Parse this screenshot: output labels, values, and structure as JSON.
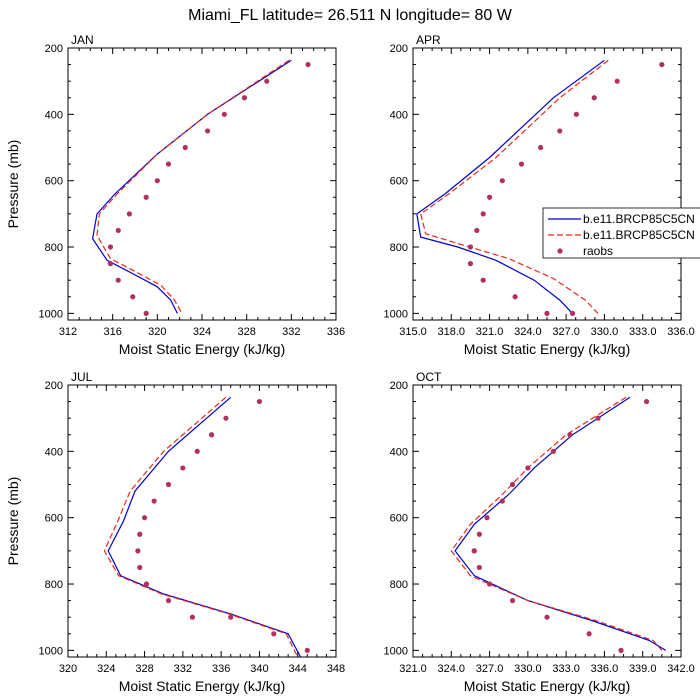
{
  "figure_title": "Miami_FL  latitude= 26.511 N longitude= 80 W",
  "legend": {
    "entries": [
      {
        "label": "b.e11.BRCP85C5CN",
        "color": "#0000cc",
        "style": "solid"
      },
      {
        "label": "b.e11.BRCP85C5CN",
        "color": "#e8281c",
        "style": "dashed"
      },
      {
        "label": "raobs",
        "color": "#b03060",
        "style": "marker"
      }
    ]
  },
  "chart_data": [
    {
      "type": "line",
      "panel": "JAN",
      "title": "JAN",
      "xlabel": "Moist Static Energy (kJ/kg)",
      "ylabel": "Pressure (mb)",
      "xlim": [
        312,
        336
      ],
      "ylim": [
        1020,
        200
      ],
      "xticks": [
        312,
        316,
        320,
        324,
        328,
        332,
        336
      ],
      "xtick_labels": [
        "312",
        "316",
        "320",
        "324",
        "328",
        "332",
        "336"
      ],
      "yticks": [
        200,
        400,
        600,
        800,
        1000
      ],
      "ytick_labels": [
        "200",
        "400",
        "600",
        "800",
        "1000"
      ],
      "series": [
        {
          "name": "b.e11.BRCP85C5CN",
          "style": "solid",
          "color": "#0000cc",
          "x": [
            332.0,
            324.5,
            320.0,
            316.2,
            314.6,
            314.2,
            315.5,
            317.5,
            320.0,
            321.2,
            321.8
          ],
          "y": [
            237,
            400,
            520,
            640,
            700,
            775,
            840,
            875,
            920,
            960,
            1000
          ]
        },
        {
          "name": "b.e11.BRCP85C5CN",
          "style": "dashed",
          "color": "#e8281c",
          "x": [
            331.8,
            324.5,
            320.0,
            316.4,
            314.8,
            314.6,
            315.8,
            317.8,
            320.3,
            321.5,
            322.2
          ],
          "y": [
            237,
            400,
            520,
            640,
            700,
            765,
            835,
            870,
            915,
            958,
            1000
          ]
        },
        {
          "name": "raobs",
          "style": "marker",
          "color": "#b03060",
          "x": [
            333.5,
            329.8,
            327.8,
            326.0,
            324.5,
            322.5,
            321.0,
            320.0,
            319.0,
            317.5,
            316.5,
            315.8,
            315.8,
            316.5,
            317.8,
            319.0
          ],
          "y": [
            250,
            300,
            350,
            400,
            450,
            500,
            550,
            600,
            650,
            700,
            750,
            800,
            850,
            900,
            950,
            1000
          ]
        }
      ]
    },
    {
      "type": "line",
      "panel": "APR",
      "title": "APR",
      "xlabel": "Moist Static Energy (kJ/kg)",
      "ylabel": "",
      "xlim": [
        315,
        336
      ],
      "ylim": [
        1020,
        200
      ],
      "xticks": [
        315,
        318,
        321,
        324,
        327,
        330,
        333,
        336
      ],
      "xtick_labels": [
        "315.0",
        "318.0",
        "321.0",
        "324.0",
        "327.0",
        "330.0",
        "333.0",
        "336.0"
      ],
      "yticks": [
        200,
        400,
        600,
        800,
        1000
      ],
      "ytick_labels": [
        "200",
        "400",
        "600",
        "800",
        "1000"
      ],
      "series": [
        {
          "name": "b.e11.BRCP85C5CN",
          "style": "solid",
          "color": "#0000cc",
          "x": [
            330.0,
            326.0,
            321.0,
            317.5,
            315.3,
            315.6,
            318.5,
            321.5,
            324.5,
            326.5,
            327.5
          ],
          "y": [
            237,
            350,
            530,
            640,
            700,
            770,
            800,
            840,
            900,
            960,
            1000
          ]
        },
        {
          "name": "b.e11.BRCP85C5CN",
          "style": "dashed",
          "color": "#e8281c",
          "x": [
            330.3,
            326.5,
            321.5,
            317.8,
            315.6,
            316.0,
            319.0,
            322.5,
            326.0,
            328.5,
            329.5
          ],
          "y": [
            237,
            350,
            530,
            640,
            700,
            760,
            795,
            835,
            895,
            960,
            1000
          ]
        },
        {
          "name": "raobs",
          "style": "marker",
          "color": "#b03060",
          "x": [
            334.5,
            331.0,
            329.2,
            327.8,
            326.5,
            325.0,
            323.5,
            322.0,
            321.0,
            320.5,
            320.0,
            319.5,
            319.5,
            320.5,
            323.0,
            325.5,
            327.5
          ],
          "y": [
            250,
            300,
            350,
            400,
            450,
            500,
            550,
            600,
            650,
            700,
            750,
            800,
            850,
            900,
            950,
            1000,
            1000
          ]
        }
      ]
    },
    {
      "type": "line",
      "panel": "JUL",
      "title": "JUL",
      "xlabel": "Moist Static Energy (kJ/kg)",
      "ylabel": "Pressure (mb)",
      "xlim": [
        320,
        348
      ],
      "ylim": [
        1020,
        200
      ],
      "xticks": [
        320,
        324,
        328,
        332,
        336,
        340,
        344,
        348
      ],
      "xtick_labels": [
        "320",
        "324",
        "328",
        "332",
        "336",
        "340",
        "344",
        "348"
      ],
      "yticks": [
        200,
        400,
        600,
        800,
        1000
      ],
      "ytick_labels": [
        "200",
        "400",
        "600",
        "800",
        "1000"
      ],
      "series": [
        {
          "name": "b.e11.BRCP85C5CN",
          "style": "solid",
          "color": "#0000cc",
          "x": [
            337.0,
            330.5,
            327.0,
            325.8,
            324.2,
            325.5,
            330.0,
            337.0,
            343.0,
            344.3
          ],
          "y": [
            237,
            400,
            520,
            610,
            700,
            775,
            830,
            890,
            950,
            1020
          ]
        },
        {
          "name": "b.e11.BRCP85C5CN",
          "style": "dashed",
          "color": "#e8281c",
          "x": [
            336.5,
            330.0,
            326.5,
            325.2,
            323.8,
            325.3,
            329.8,
            336.8,
            342.8,
            344.0
          ],
          "y": [
            237,
            400,
            520,
            610,
            700,
            775,
            830,
            890,
            950,
            1020
          ]
        },
        {
          "name": "raobs",
          "style": "marker",
          "color": "#b03060",
          "x": [
            340.0,
            336.5,
            335.0,
            333.5,
            332.0,
            330.5,
            329.0,
            328.0,
            327.5,
            327.3,
            327.5,
            328.2,
            330.5,
            333.0,
            337.0,
            341.5,
            345.0
          ],
          "y": [
            250,
            300,
            350,
            400,
            450,
            500,
            550,
            600,
            650,
            700,
            750,
            800,
            850,
            900,
            900,
            950,
            1000
          ]
        }
      ]
    },
    {
      "type": "line",
      "panel": "OCT",
      "title": "OCT",
      "xlabel": "Moist Static Energy (kJ/kg)",
      "ylabel": "",
      "xlim": [
        321,
        342
      ],
      "ylim": [
        1020,
        200
      ],
      "xticks": [
        321,
        324,
        327,
        330,
        333,
        336,
        339,
        342
      ],
      "xtick_labels": [
        "321.0",
        "324.0",
        "327.0",
        "330.0",
        "333.0",
        "336.0",
        "339.0",
        "342.0"
      ],
      "yticks": [
        200,
        400,
        600,
        800,
        1000
      ],
      "ytick_labels": [
        "200",
        "400",
        "600",
        "800",
        "1000"
      ],
      "series": [
        {
          "name": "b.e11.BRCP85C5CN",
          "style": "solid",
          "color": "#0000cc",
          "x": [
            338.0,
            333.5,
            330.5,
            328.5,
            325.8,
            324.3,
            325.8,
            330.0,
            335.0,
            339.5,
            340.8
          ],
          "y": [
            237,
            350,
            450,
            530,
            620,
            700,
            775,
            850,
            910,
            970,
            1000
          ]
        },
        {
          "name": "b.e11.BRCP85C5CN",
          "style": "dashed",
          "color": "#e8281c",
          "x": [
            337.7,
            333.0,
            330.0,
            328.0,
            325.5,
            324.0,
            325.5,
            330.0,
            335.3,
            339.8,
            340.5
          ],
          "y": [
            237,
            350,
            450,
            530,
            620,
            700,
            775,
            850,
            910,
            970,
            1000
          ]
        },
        {
          "name": "raobs",
          "style": "marker",
          "color": "#b03060",
          "x": [
            339.3,
            335.5,
            333.3,
            332.0,
            330.0,
            328.8,
            328.0,
            326.8,
            326.2,
            325.8,
            325.8,
            326.2,
            327.0,
            328.8,
            331.5,
            334.8,
            337.3
          ],
          "y": [
            250,
            300,
            350,
            400,
            450,
            500,
            550,
            600,
            650,
            700,
            700,
            750,
            800,
            850,
            900,
            950,
            1000
          ]
        }
      ]
    }
  ]
}
